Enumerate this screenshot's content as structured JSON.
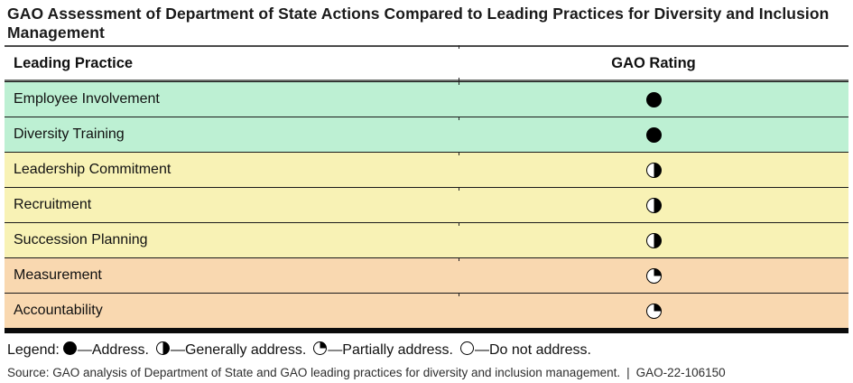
{
  "title": "GAO Assessment of Department of State Actions Compared to Leading Practices for Diversity and Inclusion Management",
  "table": {
    "columns": [
      "Leading Practice",
      "GAO Rating"
    ],
    "rows": [
      {
        "label": "Employee Involvement",
        "rating": "address",
        "rating_icon": "filled-circle-icon",
        "group": "green"
      },
      {
        "label": "Diversity Training",
        "rating": "address",
        "rating_icon": "filled-circle-icon",
        "group": "green"
      },
      {
        "label": "Leadership Commitment",
        "rating": "generally-address",
        "rating_icon": "half-circle-icon",
        "group": "yellow"
      },
      {
        "label": "Recruitment",
        "rating": "generally-address",
        "rating_icon": "half-circle-icon",
        "group": "yellow"
      },
      {
        "label": "Succession Planning",
        "rating": "generally-address",
        "rating_icon": "half-circle-icon",
        "group": "yellow"
      },
      {
        "label": "Measurement",
        "rating": "partially-address",
        "rating_icon": "quarter-circle-icon",
        "group": "orange"
      },
      {
        "label": "Accountability",
        "rating": "partially-address",
        "rating_icon": "quarter-circle-icon",
        "group": "orange"
      }
    ]
  },
  "legend": {
    "label": "Legend:",
    "separator": "—",
    "items": [
      {
        "icon": "filled-circle-icon",
        "rating": "address",
        "label": "Address."
      },
      {
        "icon": "half-circle-icon",
        "rating": "generally-address",
        "label": "Generally address."
      },
      {
        "icon": "quarter-circle-icon",
        "rating": "partially-address",
        "label": "Partially address."
      },
      {
        "icon": "empty-circle-icon",
        "rating": "do-not-address",
        "label": "Do not address."
      }
    ]
  },
  "source": {
    "text": "Source: GAO analysis of Department of State and GAO leading practices for diversity and inclusion management.",
    "separator": "|",
    "report_number": "GAO-22-106150"
  },
  "colors": {
    "row_green": "#bdf0d3",
    "row_yellow": "#f8f2b5",
    "row_orange": "#f9d8b0",
    "rating_black": "#000000",
    "bottom_bar": "#0b0b0b"
  }
}
